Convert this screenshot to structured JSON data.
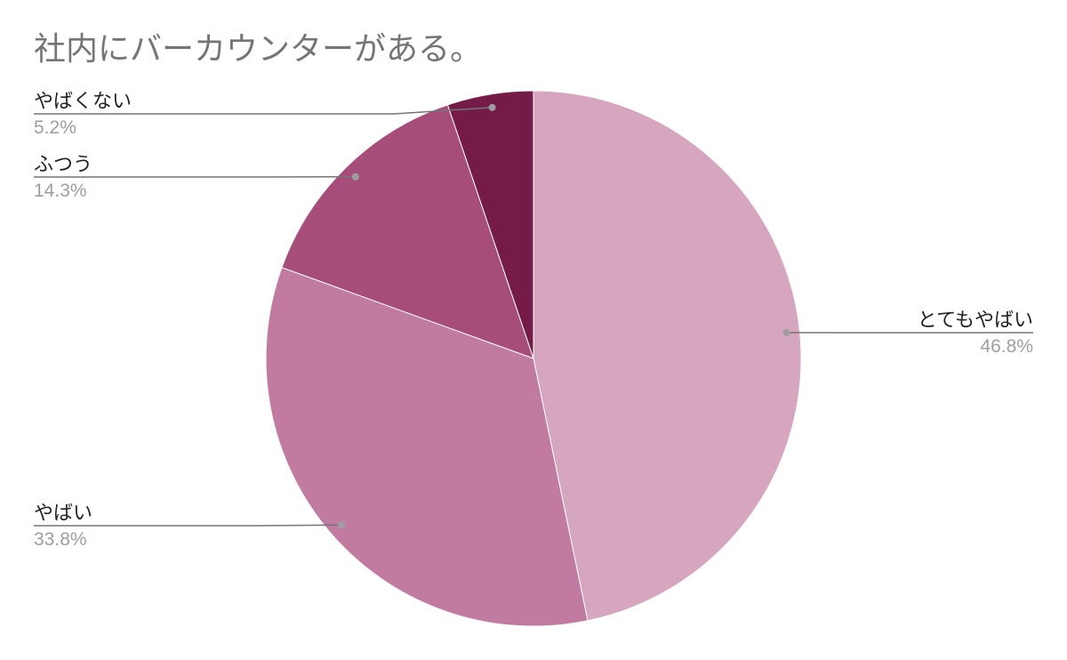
{
  "chart_data": {
    "type": "pie",
    "title": "社内にバーカウンターがある。",
    "slices": [
      {
        "label": "とてもやばい",
        "value": 46.8,
        "display": "46.8%",
        "color": "#d5a6bd"
      },
      {
        "label": "やばい",
        "value": 33.8,
        "display": "33.8%",
        "color": "#c27ba0"
      },
      {
        "label": "ふつう",
        "value": 14.3,
        "display": "14.3%",
        "color": "#a64d79"
      },
      {
        "label": "やばくない",
        "value": 5.2,
        "display": "5.2%",
        "color": "#741b47"
      }
    ],
    "legend": "none",
    "start_angle": "top",
    "direction": "clockwise"
  }
}
